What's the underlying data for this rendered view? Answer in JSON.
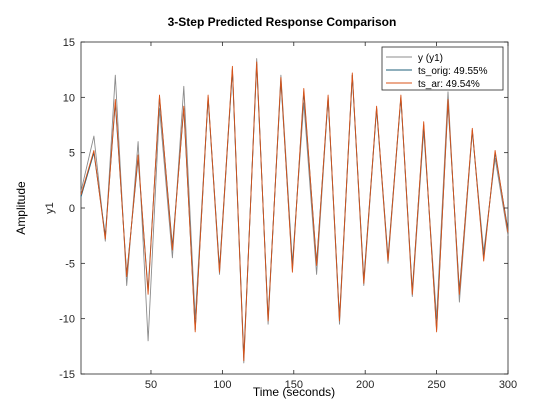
{
  "chart_data": {
    "type": "line",
    "title": "3-Step Predicted Response Comparison",
    "xlabel": "Time (seconds)",
    "ylabel_outer": "Amplitude",
    "ylabel_inner": "y1",
    "xlim": [
      1,
      300
    ],
    "ylim": [
      -15,
      15
    ],
    "xticks": [
      50,
      100,
      150,
      200,
      250,
      300
    ],
    "yticks": [
      -15,
      -10,
      -5,
      0,
      5,
      10,
      15
    ],
    "grid": false,
    "legend_position": "top-right",
    "x": [
      1,
      10,
      18,
      25,
      33,
      41,
      48,
      56,
      65,
      73,
      81,
      90,
      98,
      107,
      115,
      124,
      132,
      141,
      149,
      157,
      166,
      174,
      182,
      191,
      199,
      208,
      216,
      225,
      233,
      241,
      250,
      258,
      266,
      275,
      283,
      291,
      300
    ],
    "series": [
      {
        "name": "y (y1)",
        "color": "#8c8c8c",
        "values": [
          1.5,
          6.5,
          -3.0,
          12.0,
          -7.0,
          6.0,
          -12.0,
          9.0,
          -4.5,
          11.0,
          -10.0,
          10.0,
          -6.0,
          12.5,
          -14.0,
          13.5,
          -10.5,
          12.0,
          -5.0,
          9.5,
          -6.0,
          10.0,
          -10.5,
          12.0,
          -7.0,
          9.0,
          -5.0,
          10.0,
          -8.0,
          7.0,
          -10.0,
          10.5,
          -8.5,
          7.0,
          -4.0,
          4.5,
          -2.5
        ]
      },
      {
        "name": "ts_orig: 49.55%",
        "color": "#1f5f7a",
        "values": [
          1.0,
          5.0,
          -2.5,
          9.5,
          -6.0,
          4.5,
          -7.5,
          10.0,
          -3.5,
          9.0,
          -11.0,
          10.0,
          -5.5,
          12.5,
          -13.5,
          13.0,
          -10.0,
          11.5,
          -5.5,
          10.5,
          -5.0,
          10.0,
          -10.0,
          12.0,
          -6.5,
          9.0,
          -4.5,
          10.0,
          -7.5,
          7.5,
          -11.0,
          9.5,
          -7.5,
          7.0,
          -4.5,
          5.0,
          -2.0
        ]
      },
      {
        "name": "ts_ar: 49.54%",
        "color": "#d95319",
        "values": [
          1.2,
          5.2,
          -2.8,
          9.8,
          -6.2,
          4.8,
          -7.8,
          10.2,
          -3.8,
          9.2,
          -11.2,
          10.2,
          -5.8,
          12.8,
          -13.8,
          13.2,
          -10.2,
          11.8,
          -5.8,
          10.8,
          -5.2,
          10.2,
          -10.2,
          12.2,
          -6.8,
          9.2,
          -4.8,
          10.2,
          -7.8,
          7.8,
          -11.2,
          9.8,
          -7.8,
          7.2,
          -4.8,
          5.2,
          -2.2
        ]
      }
    ]
  }
}
